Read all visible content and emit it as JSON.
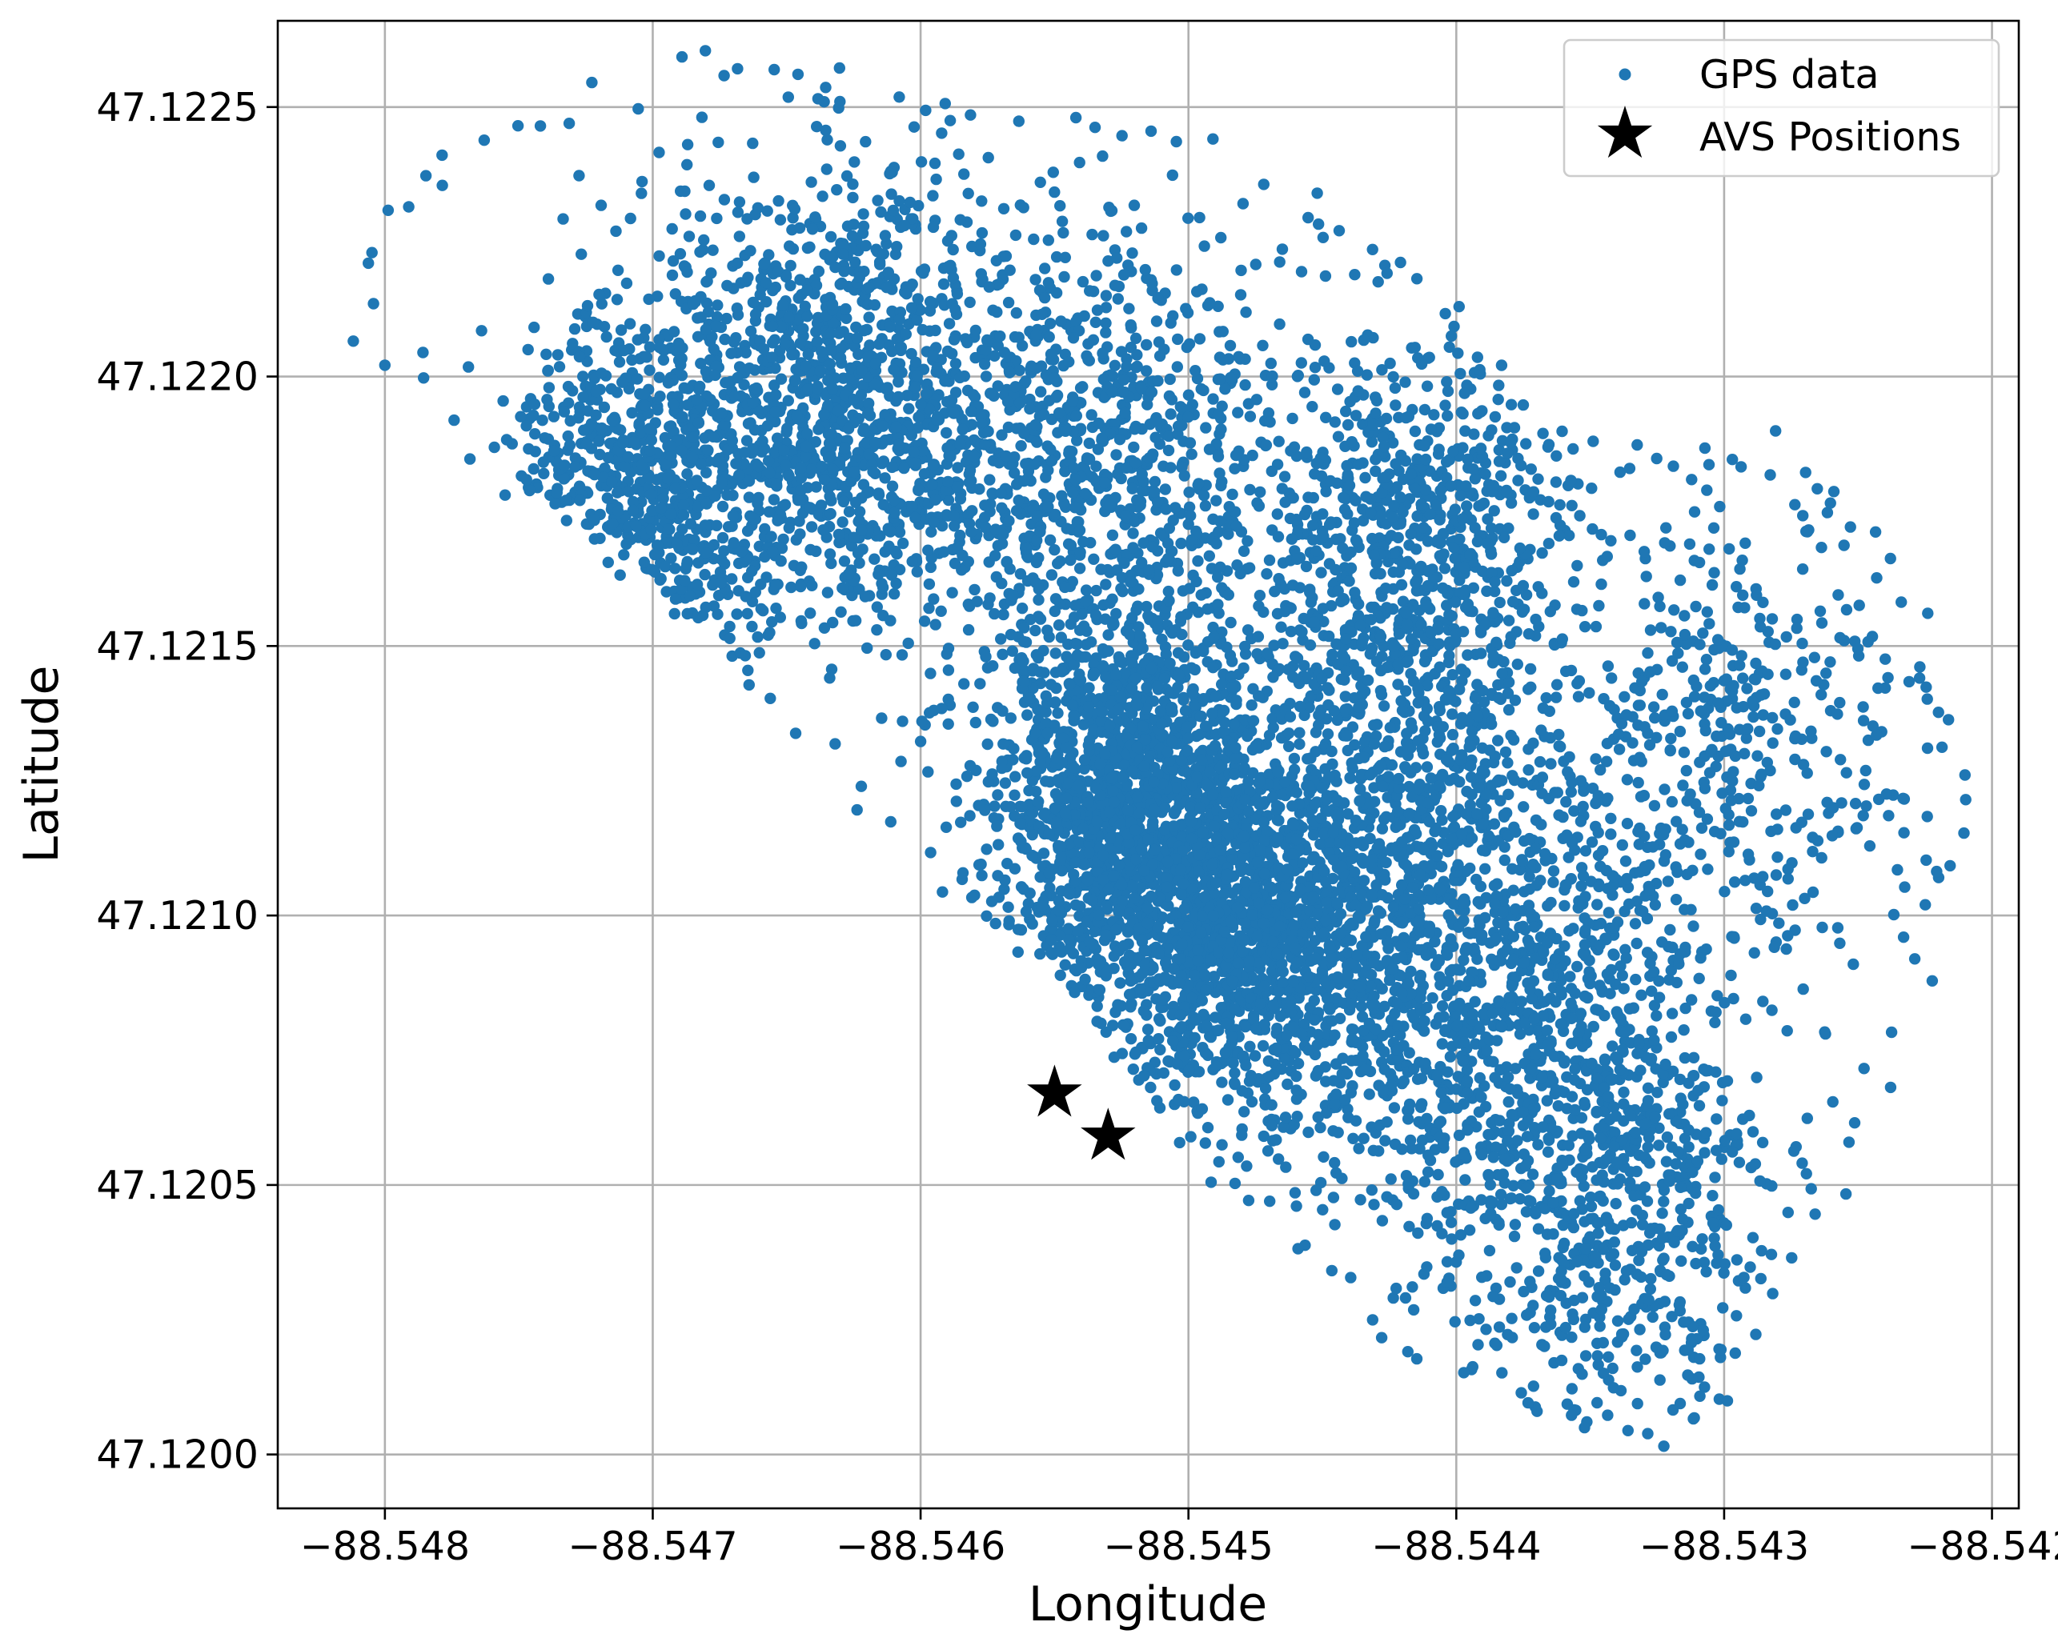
{
  "chart_data": {
    "type": "scatter",
    "title": "",
    "xlabel": "Longitude",
    "ylabel": "Latitude",
    "xlim": [
      -88.5484,
      -88.5419
    ],
    "ylim": [
      47.1199,
      47.12266
    ],
    "xticks": [
      -88.548,
      -88.547,
      -88.546,
      -88.545,
      -88.544,
      -88.543,
      -88.542
    ],
    "xtick_labels": [
      "−88.548",
      "−88.547",
      "−88.546",
      "−88.545",
      "−88.544",
      "−88.543",
      "−88.542"
    ],
    "yticks": [
      47.12,
      47.1205,
      47.121,
      47.1215,
      47.122,
      47.1225
    ],
    "ytick_labels": [
      "47.1200",
      "47.1205",
      "47.1210",
      "47.1215",
      "47.1220",
      "47.1225"
    ],
    "grid": true,
    "legend_position": "top-right",
    "series": [
      {
        "name": "GPS data",
        "marker": "circle",
        "color": "#1f77b4",
        "distribution_note": "dense cloud of several thousand points; clusters listed as [center_lon, center_lat, spread_lon, spread_lat, count]",
        "clusters": [
          [
            -88.5463,
            47.12195,
            0.00065,
            0.00035,
            1400
          ],
          [
            -88.5471,
            47.12175,
            0.00045,
            0.0003,
            500
          ],
          [
            -88.5453,
            47.12185,
            0.00055,
            0.00035,
            800
          ],
          [
            -88.5452,
            47.1212,
            0.00045,
            0.0003,
            1700
          ],
          [
            -88.5447,
            47.12095,
            0.0005,
            0.0003,
            1300
          ],
          [
            -88.5442,
            47.12145,
            0.0005,
            0.0004,
            900
          ],
          [
            -88.5438,
            47.1208,
            0.00055,
            0.0004,
            1000
          ],
          [
            -88.5434,
            47.12045,
            0.0005,
            0.00035,
            500
          ],
          [
            -88.543,
            47.1213,
            0.0006,
            0.0004,
            450
          ],
          [
            -88.5441,
            47.1218,
            0.0005,
            0.00025,
            300
          ]
        ],
        "boundary": {
          "edge_points": [
            [
              -88.5481,
              47.1221
            ],
            [
              -88.5475,
              47.1218
            ],
            [
              -88.547,
              47.12163
            ],
            [
              -88.5467,
              47.12145
            ],
            [
              -88.5463,
              47.12125
            ],
            [
              -88.5459,
              47.12105
            ],
            [
              -88.5455,
              47.1209
            ],
            [
              -88.5452,
              47.1207
            ],
            [
              -88.545,
              47.12055
            ],
            [
              -88.5447,
              47.12045
            ],
            [
              -88.5444,
              47.1203
            ],
            [
              -88.5441,
              47.12018
            ],
            [
              -88.5437,
              47.12008
            ],
            [
              -88.5433,
              47.12003
            ],
            [
              -88.543,
              47.1201
            ],
            [
              -88.5428,
              47.1203
            ],
            [
              -88.5425,
              47.1206
            ],
            [
              -88.5422,
              47.121
            ],
            [
              -88.5421,
              47.1212
            ],
            [
              -88.5422,
              47.1214
            ],
            [
              -88.5424,
              47.12165
            ],
            [
              -88.5426,
              47.1218
            ],
            [
              -88.5429,
              47.12185
            ],
            [
              -88.5433,
              47.12185
            ],
            [
              -88.5437,
              47.1219
            ],
            [
              -88.544,
              47.1221
            ],
            [
              -88.5443,
              47.12225
            ],
            [
              -88.5447,
              47.12235
            ],
            [
              -88.5452,
              47.12245
            ],
            [
              -88.5458,
              47.1225
            ],
            [
              -88.5463,
              47.12255
            ],
            [
              -88.5468,
              47.1226
            ],
            [
              -88.5473,
              47.1225
            ],
            [
              -88.5477,
              47.1224
            ],
            [
              -88.548,
              47.1223
            ]
          ]
        }
      },
      {
        "name": "AVS Positions",
        "marker": "star",
        "color": "#000000",
        "x": [
          -88.5455,
          -88.5453
        ],
        "y": [
          47.12067,
          47.12059
        ]
      }
    ]
  }
}
